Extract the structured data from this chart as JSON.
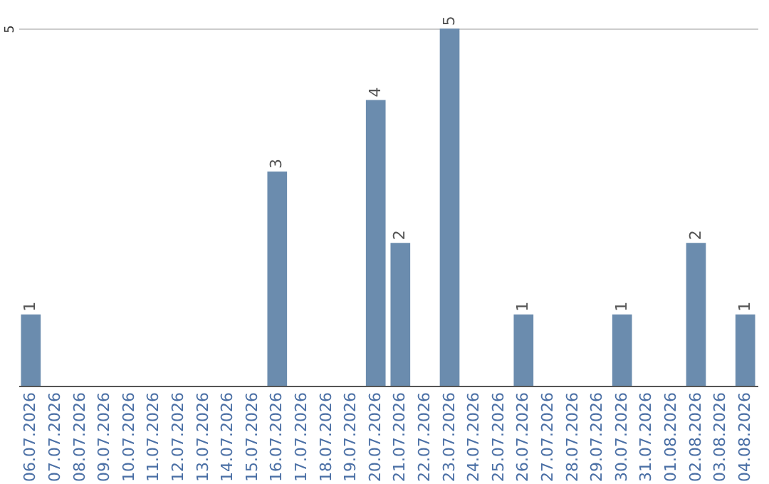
{
  "chart_data": {
    "type": "bar",
    "categories": [
      "06.07.2026",
      "07.07.2026",
      "08.07.2026",
      "09.07.2026",
      "10.07.2026",
      "11.07.2026",
      "12.07.2026",
      "13.07.2026",
      "14.07.2026",
      "15.07.2026",
      "16.07.2026",
      "17.07.2026",
      "18.07.2026",
      "19.07.2026",
      "20.07.2026",
      "21.07.2026",
      "22.07.2026",
      "23.07.2026",
      "24.07.2026",
      "25.07.2026",
      "26.07.2026",
      "27.07.2026",
      "28.07.2026",
      "29.07.2026",
      "30.07.2026",
      "31.07.2026",
      "01.08.2026",
      "02.08.2026",
      "03.08.2026",
      "04.08.2026"
    ],
    "values": [
      1,
      0,
      0,
      0,
      0,
      0,
      0,
      0,
      0,
      0,
      3,
      0,
      0,
      0,
      4,
      2,
      0,
      5,
      0,
      0,
      1,
      0,
      0,
      0,
      1,
      0,
      0,
      2,
      0,
      1
    ],
    "value_labels": [
      "1",
      null,
      null,
      null,
      null,
      null,
      null,
      null,
      null,
      null,
      "3",
      null,
      null,
      null,
      "4",
      "2",
      null,
      "5",
      null,
      null,
      "1",
      null,
      null,
      null,
      "1",
      null,
      null,
      "2",
      null,
      "1"
    ],
    "color": "#6b8cae",
    "ylim": [
      0,
      5.4
    ],
    "yticks": [
      5
    ],
    "grid": "y"
  }
}
